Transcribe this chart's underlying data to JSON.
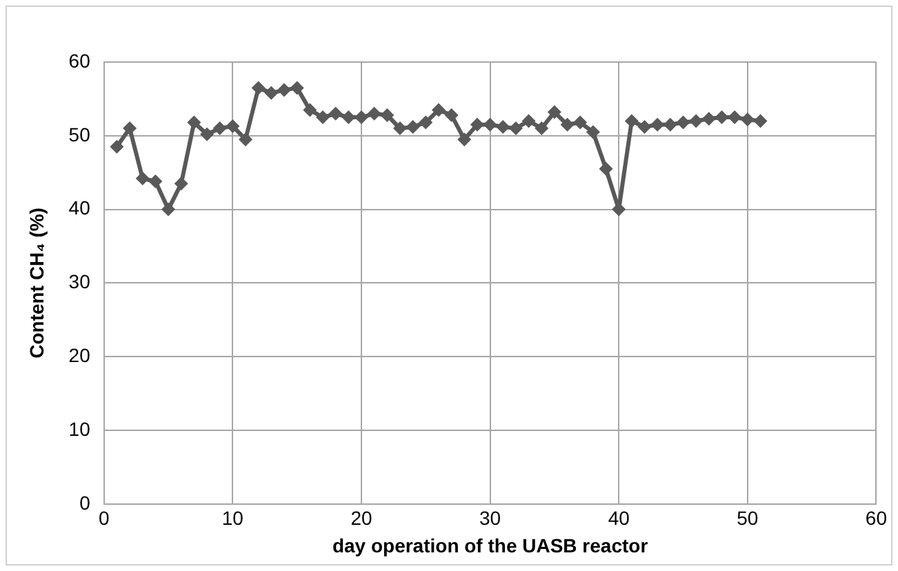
{
  "chart_data": {
    "type": "line",
    "xlabel": "day operation of the UASB reactor",
    "ylabel": "Content CH₄ (%)",
    "x": [
      1,
      2,
      3,
      4,
      5,
      6,
      7,
      8,
      9,
      10,
      11,
      12,
      13,
      14,
      15,
      16,
      17,
      18,
      19,
      20,
      21,
      22,
      23,
      24,
      25,
      26,
      27,
      28,
      29,
      30,
      31,
      32,
      33,
      34,
      35,
      36,
      37,
      38,
      39,
      40,
      41,
      42,
      43,
      44,
      45,
      46,
      47,
      48,
      49,
      50,
      51
    ],
    "series": [
      {
        "color": "#595959",
        "values": [
          48.5,
          51,
          44.2,
          43.8,
          40,
          43.5,
          51.8,
          50.2,
          51,
          51.3,
          49.5,
          56.5,
          55.8,
          56.2,
          56.5,
          53.5,
          52.5,
          53,
          52.5,
          52.5,
          53,
          52.8,
          51,
          51.2,
          51.8,
          53.5,
          52.8,
          49.5,
          51.5,
          51.5,
          51.2,
          51,
          52,
          51,
          53.2,
          51.5,
          51.8,
          50.5,
          45.5,
          40,
          52,
          51.2,
          51.5,
          51.5,
          51.8,
          52,
          52.3,
          52.5,
          52.5,
          52.2,
          52
        ]
      }
    ],
    "xlim": [
      0,
      60
    ],
    "xticks": [
      0,
      10,
      20,
      30,
      40,
      50,
      60
    ],
    "ylim": [
      0,
      60
    ],
    "yticks": [
      0,
      10,
      20,
      30,
      40,
      50,
      60
    ],
    "grid": true,
    "legend": false,
    "marker": "diamond",
    "line_style": "solid"
  }
}
